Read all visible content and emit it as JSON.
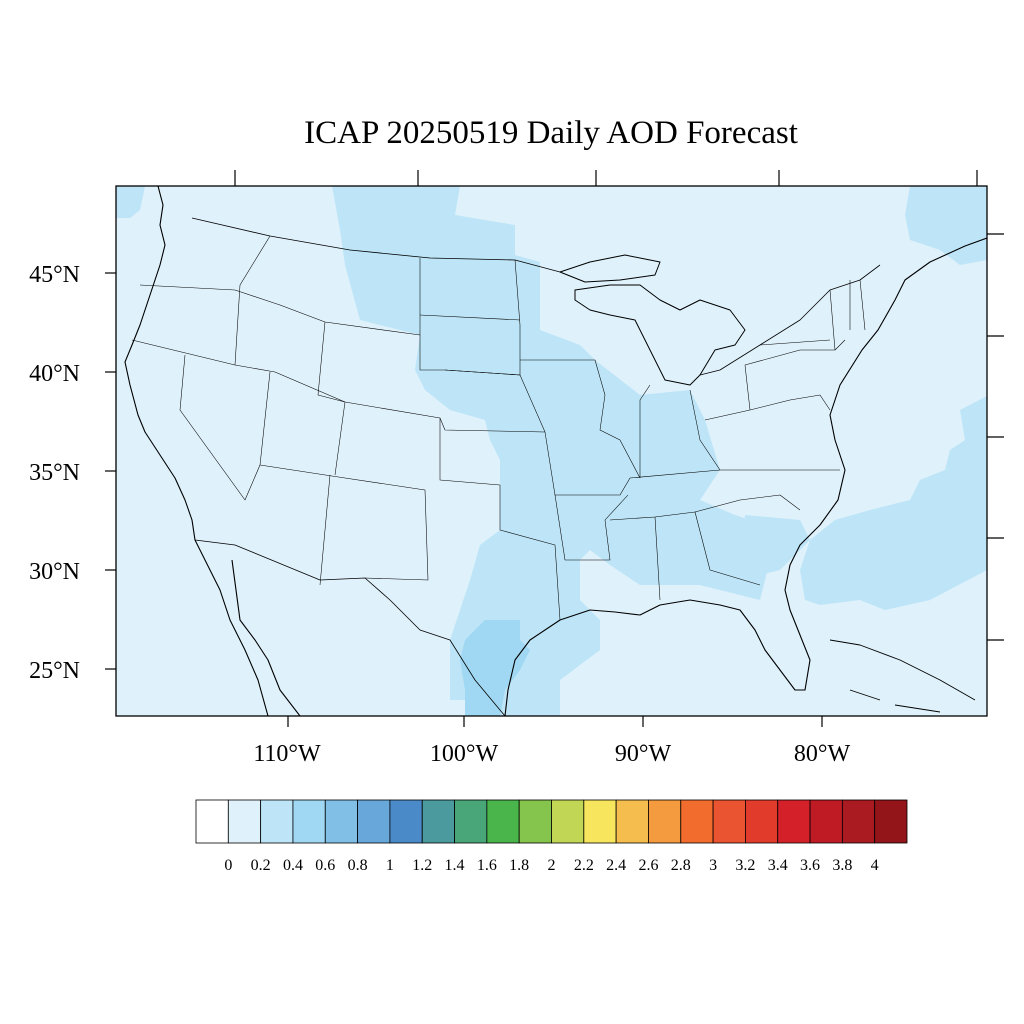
{
  "title": "ICAP 20250519 Daily AOD Forecast",
  "map": {
    "lat_labels": [
      "45°N",
      "40°N",
      "35°N",
      "30°N",
      "25°N"
    ],
    "lon_labels": [
      "110°W",
      "100°W",
      "90°W",
      "80°W"
    ],
    "background_color": "#dff1fb"
  },
  "colorbar": {
    "labels": [
      "0",
      "0.2",
      "0.4",
      "0.6",
      "0.8",
      "1",
      "1.2",
      "1.4",
      "1.6",
      "1.8",
      "2",
      "2.2",
      "2.4",
      "2.6",
      "2.8",
      "3",
      "3.2",
      "3.4",
      "3.6",
      "3.8",
      "4"
    ],
    "colors": [
      "#ffffff",
      "#dff1fb",
      "#bde5f7",
      "#a0d8f3",
      "#81bfe6",
      "#68a7da",
      "#4a8ac8",
      "#4a9a9e",
      "#48a679",
      "#4ab54a",
      "#85c44d",
      "#c2d655",
      "#f7e55d",
      "#f5bd4d",
      "#f49a3f",
      "#f26d2d",
      "#ea5430",
      "#e13b2b",
      "#d42129",
      "#be1b25",
      "#a91a21",
      "#941519"
    ]
  }
}
